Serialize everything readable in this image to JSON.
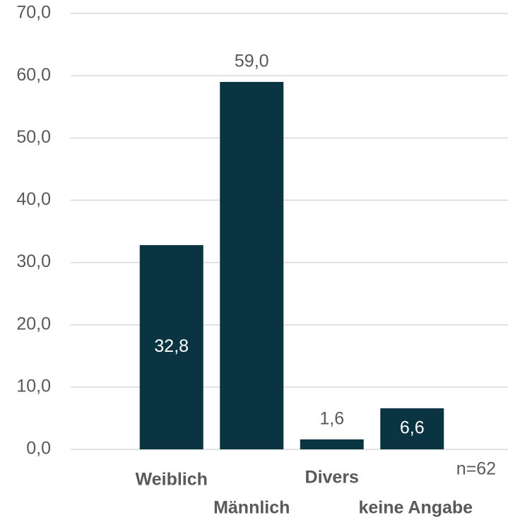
{
  "chart_data": {
    "type": "bar",
    "categories": [
      "Weiblich",
      "Männlich",
      "Divers",
      "keine Angabe"
    ],
    "values": [
      32.8,
      59.0,
      1.6,
      6.6
    ],
    "value_labels": [
      "32,8",
      "59,0",
      "1,6",
      "6,6"
    ],
    "color": "#0b3443",
    "ylim": [
      0,
      70
    ],
    "yticks": [
      {
        "value": 0,
        "label": "0,0"
      },
      {
        "value": 10,
        "label": "10,0"
      },
      {
        "value": 20,
        "label": "20,0"
      },
      {
        "value": 30,
        "label": "30,0"
      },
      {
        "value": 40,
        "label": "40,0"
      },
      {
        "value": 50,
        "label": "50,0"
      },
      {
        "value": 60,
        "label": "60,0"
      },
      {
        "value": 70,
        "label": "70,0"
      }
    ],
    "grid": true,
    "annotation": "n=62"
  }
}
